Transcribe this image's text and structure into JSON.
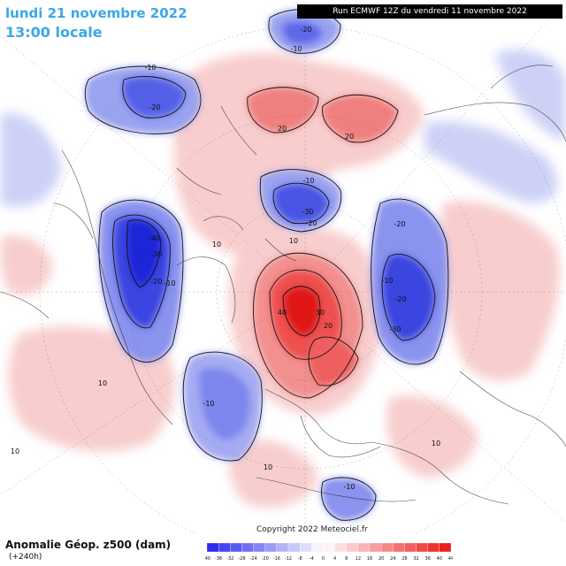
{
  "header": {
    "date_label": "lundi 21 novembre 2022",
    "time_label": "13:00 locale",
    "run_label": "Run ECMWF 12Z du vendredi 11 novembre 2022"
  },
  "footer": {
    "parameter": "Anomalie Géop. z500 (dam)",
    "lead_time": "(+240h)",
    "copyright": "Copyright 2022 Meteociel.fr"
  },
  "legend": {
    "ticks": [
      "-40",
      "-36",
      "-32",
      "-28",
      "-24",
      "-20",
      "-16",
      "-12",
      "-8",
      "-4",
      "0",
      "4",
      "8",
      "12",
      "16",
      "20",
      "24",
      "28",
      "32",
      "36",
      "40",
      "44"
    ],
    "negative_color": "#2222ee",
    "positive_color": "#ee1111"
  },
  "anomalies": [
    {
      "label": "-20",
      "value": -20
    },
    {
      "label": "-10",
      "value": -10
    },
    {
      "label": "-20",
      "value": -20
    },
    {
      "label": "-10",
      "value": -10
    },
    {
      "label": "-40",
      "value": -40
    },
    {
      "label": "-30",
      "value": -30
    },
    {
      "label": "-20",
      "value": -20
    },
    {
      "label": "-10",
      "value": -10
    },
    {
      "label": "-10",
      "value": -10
    },
    {
      "label": "-10",
      "value": -10
    },
    {
      "label": "-30",
      "value": -30
    },
    {
      "label": "-20",
      "value": -20
    },
    {
      "label": "10",
      "value": 10
    },
    {
      "label": "-20",
      "value": -20
    },
    {
      "label": "-10",
      "value": -10
    },
    {
      "label": "-20",
      "value": -20
    },
    {
      "label": "-30",
      "value": -30
    },
    {
      "label": "20",
      "value": 20
    },
    {
      "label": "20",
      "value": 20
    },
    {
      "label": "10",
      "value": 10
    },
    {
      "label": "40",
      "value": 40
    },
    {
      "label": "30",
      "value": 30
    },
    {
      "label": "20",
      "value": 20
    },
    {
      "label": "10",
      "value": 10
    },
    {
      "label": "10",
      "value": 10
    },
    {
      "label": "10",
      "value": 10
    },
    {
      "label": "10",
      "value": 10
    },
    {
      "label": "-10",
      "value": -10
    }
  ]
}
